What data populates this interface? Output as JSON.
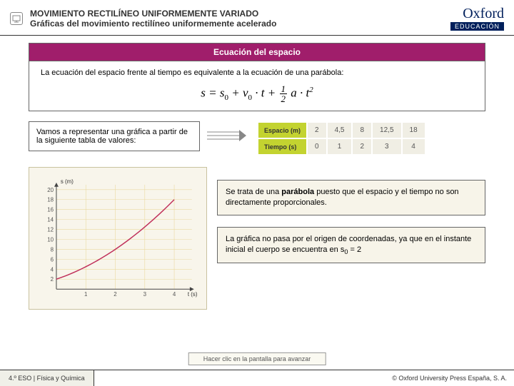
{
  "header": {
    "title": "MOVIMIENTO RECTILÍNEO UNIFORMEMENTE VARIADO",
    "subtitle": "Gráficas del movimiento rectilíneo uniformemente acelerado"
  },
  "logo": {
    "main": "Oxford",
    "sub": "EDUCACIÓN"
  },
  "section": {
    "heading": "Ecuación del espacio",
    "description": "La ecuación del espacio frente al tiempo es equivalente a la ecuación de una parábola:",
    "equation_parts": {
      "s": "s",
      "eq": " = ",
      "s0": "s",
      "s0_sub": "0",
      "plus1": " + ",
      "v0": "v",
      "v0_sub": "0",
      "dot1": " · ",
      "t1": "t",
      "plus2": " + ",
      "frac_top": "1",
      "frac_bot": "2",
      "a": " a",
      "dot2": " · ",
      "t2": "t",
      "sq": "2"
    }
  },
  "intro": "Vamos a representar una gráfica a partir de la siguiente tabla de valores:",
  "table": {
    "rows": [
      {
        "label": "Espacio (m)",
        "values": [
          "2",
          "4,5",
          "8",
          "12,5",
          "18"
        ]
      },
      {
        "label": "Tiempo (s)",
        "values": [
          "0",
          "1",
          "2",
          "3",
          "4"
        ]
      }
    ]
  },
  "chart": {
    "y_label": "s (m)",
    "x_label": "t (s)",
    "y_ticks": [
      2,
      4,
      6,
      8,
      10,
      12,
      14,
      16,
      18,
      20
    ],
    "x_ticks": [
      1,
      2,
      3,
      4
    ],
    "xlim": [
      0,
      4.6
    ],
    "ylim": [
      0,
      21
    ],
    "points": [
      [
        0,
        2
      ],
      [
        1,
        4.5
      ],
      [
        2,
        8
      ],
      [
        3,
        12.5
      ],
      [
        4,
        18
      ]
    ],
    "curve_color": "#c0305a",
    "grid_color": "#ead9a0",
    "bg_color": "#fdf9ec",
    "axis_color": "#444444",
    "line_width": 1.5
  },
  "notes": {
    "n1_a": "Se trata de una ",
    "n1_b": "parábola",
    "n1_c": " puesto que el espacio y el tiempo no son directamente proporcionales.",
    "n2_a": "La gráfica no pasa por el origen de coordenadas, ya que en el instante inicial el cuerpo se encuentra en s",
    "n2_sub": "0",
    "n2_b": " = 2"
  },
  "footer_button": "Hacer clic en la pantalla para avanzar",
  "footer": {
    "left": "4.º ESO | Física y Química",
    "right": "© Oxford University Press España, S. A."
  }
}
